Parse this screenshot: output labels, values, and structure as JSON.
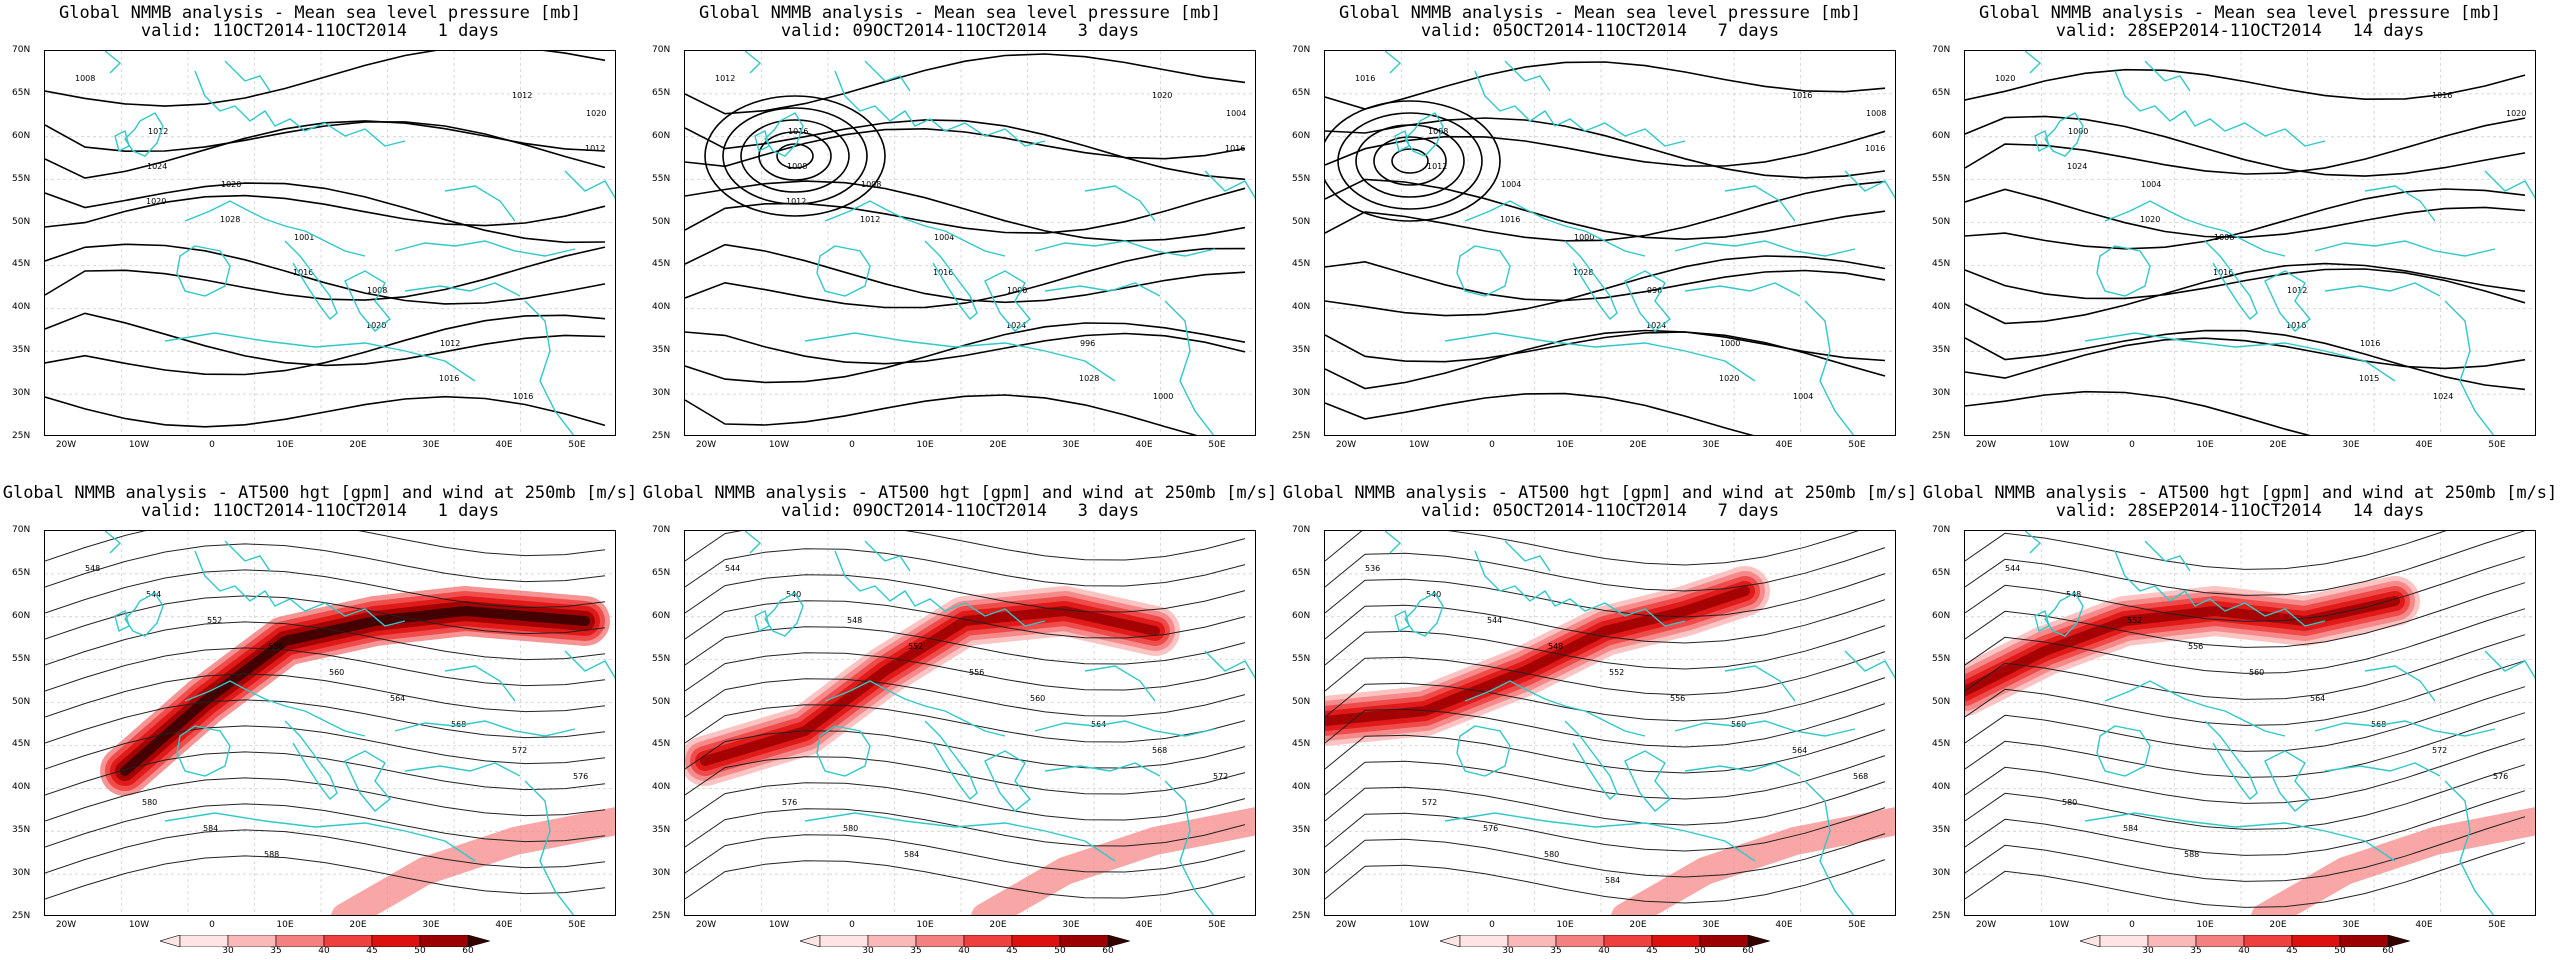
{
  "panels": [
    {
      "title": "Global NMMB analysis - Mean sea level pressure [mb]",
      "valid": "valid: 11OCT2014-11OCT2014   1 days",
      "type": "mslp",
      "contours": [
        "1008",
        "1012",
        "1020",
        "1001",
        "1008",
        "1012",
        "1016",
        "1020",
        "1024",
        "1028",
        "1016",
        "1020",
        "1016",
        "1012",
        "1012",
        "1020"
      ]
    },
    {
      "title": "Global NMMB analysis - Mean sea level pressure [mb]",
      "valid": "valid: 09OCT2014-11OCT2014   3 days",
      "type": "mslp",
      "contours": [
        "1012",
        "1016",
        "1008",
        "1004",
        "1000",
        "996",
        "1000",
        "1004",
        "1008",
        "1012",
        "1016",
        "1024",
        "1028",
        "1020",
        "1016",
        "1012"
      ]
    },
    {
      "title": "Global NMMB analysis - Mean sea level pressure [mb]",
      "valid": "valid: 05OCT2014-11OCT2014   7 days",
      "type": "mslp",
      "contours": [
        "1016",
        "1008",
        "1004",
        "1000",
        "996",
        "1000",
        "1004",
        "1008",
        "1012",
        "1016",
        "1028",
        "1024",
        "1020",
        "1016",
        "1016"
      ]
    },
    {
      "title": "Global NMMB analysis - Mean sea level pressure [mb]",
      "valid": "valid: 28SEP2014-11OCT2014   14 days",
      "type": "mslp",
      "contours": [
        "1020",
        "1000",
        "1004",
        "1008",
        "1012",
        "1016",
        "1024",
        "1020",
        "1024",
        "1020",
        "1016",
        "1016",
        "1015",
        "1016"
      ]
    },
    {
      "title": "Global NMMB analysis - AT500 hgt [gpm] and wind at 250mb [m/s]",
      "valid": "valid: 11OCT2014-11OCT2014   1 days",
      "type": "z500",
      "contours": [
        "548",
        "544",
        "552",
        "556",
        "560",
        "564",
        "568",
        "572",
        "576",
        "580",
        "584",
        "588"
      ]
    },
    {
      "title": "Global NMMB analysis - AT500 hgt [gpm] and wind at 250mb [m/s]",
      "valid": "valid: 09OCT2014-11OCT2014   3 days",
      "type": "z500",
      "contours": [
        "544",
        "540",
        "548",
        "552",
        "556",
        "560",
        "564",
        "568",
        "572",
        "576",
        "580",
        "584"
      ]
    },
    {
      "title": "Global NMMB analysis - AT500 hgt [gpm] and wind at 250mb [m/s]",
      "valid": "valid: 05OCT2014-11OCT2014   7 days",
      "type": "z500",
      "contours": [
        "536",
        "540",
        "544",
        "548",
        "552",
        "556",
        "560",
        "564",
        "568",
        "572",
        "576",
        "580",
        "584"
      ]
    },
    {
      "title": "Global NMMB analysis - AT500 hgt [gpm] and wind at 250mb [m/s]",
      "valid": "valid: 28SEP2014-11OCT2014   14 days",
      "type": "z500",
      "contours": [
        "544",
        "548",
        "552",
        "556",
        "560",
        "564",
        "568",
        "572",
        "576",
        "580",
        "584",
        "588"
      ]
    }
  ],
  "lat_labels": [
    "70N",
    "65N",
    "60N",
    "55N",
    "50N",
    "45N",
    "40N",
    "35N",
    "30N",
    "25N"
  ],
  "lon_labels": [
    "20W",
    "10W",
    "0",
    "10E",
    "20E",
    "30E",
    "40E",
    "50E"
  ],
  "colorbar": {
    "labels": [
      "30",
      "35",
      "40",
      "45",
      "50",
      "60"
    ],
    "colors": [
      "#ffe4e4",
      "#fbb8b8",
      "#f58080",
      "#ef4040",
      "#dd1010",
      "#9a0000",
      "#330000"
    ]
  },
  "colors": {
    "coast": "#30c8c8",
    "contour": "#000000",
    "grid": "#c8c8c8"
  }
}
